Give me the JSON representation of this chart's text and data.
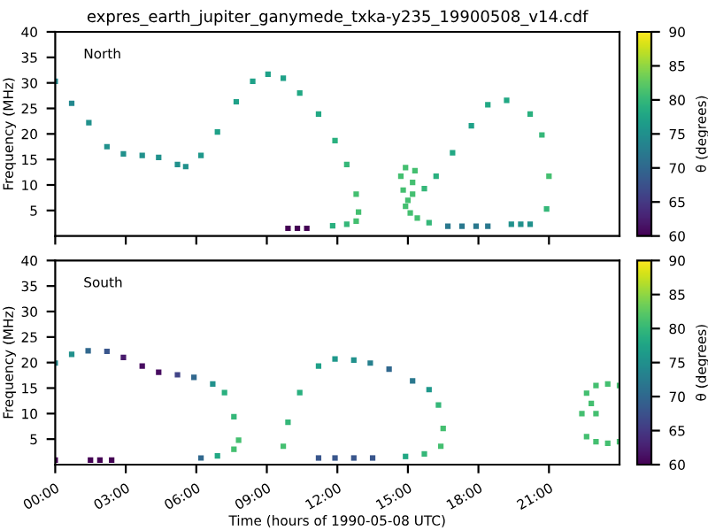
{
  "chart_data": [
    {
      "type": "scatter",
      "title": "expres_earth_jupiter_ganymede_txka-y235_19900508_v14.cdf",
      "ylabel": "Frequency (MHz)",
      "clabel": "θ (degrees)",
      "annotations": [
        "North"
      ],
      "xlim": [
        0,
        24
      ],
      "xticks": [
        {
          "value": 0,
          "label": null
        },
        {
          "value": 3,
          "label": null
        },
        {
          "value": 6,
          "label": null
        },
        {
          "value": 9,
          "label": null
        },
        {
          "value": 12,
          "label": null
        },
        {
          "value": 15,
          "label": null
        },
        {
          "value": 18,
          "label": null
        },
        {
          "value": 21,
          "label": null
        }
      ],
      "ylim": [
        0,
        40
      ],
      "yticks": [
        5,
        10,
        15,
        20,
        25,
        30,
        35,
        40
      ],
      "clim": [
        60,
        90
      ],
      "cticks": [
        60,
        65,
        70,
        75,
        80,
        85,
        90
      ],
      "tick_labels": "y",
      "marker": "square",
      "grid": false,
      "legend": false,
      "series": [
        {
          "x": [
            0,
            0.7,
            1.43,
            2.2,
            2.9,
            3.7,
            4.4,
            5.2,
            5.55,
            6.2,
            6.9,
            7.7,
            8.4,
            9.05,
            9.7,
            10.4,
            11.2,
            11.9,
            12.4,
            12.8,
            12.9,
            12.8,
            12.4,
            11.8,
            9.9,
            10.3,
            10.7,
            16.7,
            17.3,
            17.9,
            18.4,
            19.4,
            19.8,
            20.2,
            20.9,
            21.0,
            20.7,
            20.2,
            19.2,
            18.4,
            17.7,
            16.9,
            16.2,
            15.7,
            15.2,
            14.7,
            14.9,
            15.3,
            15.2,
            14.9,
            15.4,
            15.9,
            15.0,
            14.8,
            15.1
          ],
          "values": [
            30.3,
            26.0,
            22.2,
            17.5,
            16.1,
            15.8,
            15.4,
            14.0,
            13.6,
            15.8,
            20.4,
            26.3,
            30.3,
            31.7,
            30.9,
            28.0,
            23.9,
            18.7,
            14.0,
            8.2,
            4.7,
            2.9,
            2.3,
            2.0,
            1.5,
            1.5,
            1.5,
            1.9,
            1.9,
            1.9,
            1.9,
            2.3,
            2.3,
            2.3,
            5.3,
            11.7,
            19.8,
            23.9,
            26.6,
            25.7,
            21.6,
            16.3,
            11.7,
            9.3,
            8.2,
            11.7,
            13.4,
            12.8,
            10.5,
            5.8,
            3.5,
            2.6,
            7.0,
            9.0,
            4.5
          ],
          "cvalues": [
            74,
            74,
            75,
            75,
            75,
            75,
            75,
            75,
            75,
            76,
            77,
            77,
            77,
            77,
            77,
            78,
            78,
            79,
            80,
            81,
            81,
            81,
            80,
            79,
            60,
            60,
            60,
            72,
            72,
            72,
            72,
            75,
            75,
            75,
            80,
            81,
            80,
            79,
            78,
            78,
            77,
            78,
            79,
            80,
            81,
            81,
            81,
            81,
            81,
            81,
            81,
            80,
            81,
            81,
            81
          ]
        }
      ]
    },
    {
      "type": "scatter",
      "xlabel": "Time (hours of 1990-05-08 UTC)",
      "ylabel": "Frequency (MHz)",
      "clabel": "θ (degrees)",
      "annotations": [
        "South"
      ],
      "xlim": [
        0,
        24
      ],
      "xticks": [
        {
          "value": 0,
          "label": "00:00"
        },
        {
          "value": 3,
          "label": "03:00"
        },
        {
          "value": 6,
          "label": "06:00"
        },
        {
          "value": 9,
          "label": "09:00"
        },
        {
          "value": 12,
          "label": "12:00"
        },
        {
          "value": 15,
          "label": "15:00"
        },
        {
          "value": 18,
          "label": "18:00"
        },
        {
          "value": 21,
          "label": "21:00"
        }
      ],
      "ylim": [
        0,
        40
      ],
      "yticks": [
        5,
        10,
        15,
        20,
        25,
        30,
        35,
        40
      ],
      "clim": [
        60,
        90
      ],
      "cticks": [
        60,
        65,
        70,
        75,
        80,
        85,
        90
      ],
      "marker": "square",
      "grid": false,
      "legend": false,
      "series": [
        {
          "x": [
            0,
            0.7,
            1.4,
            2.2,
            2.9,
            3.7,
            4.4,
            5.2,
            5.9,
            6.7,
            7.2,
            7.6,
            7.8,
            7.6,
            6.9,
            6.2,
            0,
            1.5,
            1.9,
            2.4,
            9.7,
            9.9,
            10.4,
            11.2,
            11.9,
            12.7,
            13.4,
            14.2,
            15.2,
            15.9,
            16.3,
            16.5,
            16.4,
            15.7,
            14.9,
            11.2,
            11.9,
            12.7,
            13.5,
            22.4,
            22.6,
            23.0,
            23.5,
            24.0,
            22.6,
            23.0,
            23.5,
            24.0,
            23.0,
            22.8
          ],
          "values": [
            19.9,
            21.6,
            22.3,
            22.2,
            21.0,
            19.3,
            18.1,
            17.6,
            17.1,
            15.8,
            14.1,
            9.4,
            4.8,
            3.0,
            1.7,
            1.3,
            0.9,
            0.9,
            0.9,
            0.9,
            3.6,
            8.3,
            14.1,
            19.3,
            20.7,
            20.5,
            19.9,
            18.7,
            16.4,
            14.7,
            11.7,
            7.1,
            3.6,
            2.1,
            1.6,
            1.3,
            1.3,
            1.3,
            1.3,
            10.0,
            14.0,
            15.5,
            15.8,
            15.5,
            5.5,
            4.5,
            4.2,
            4.5,
            10.0,
            12.0
          ],
          "cvalues": [
            74,
            75,
            70,
            68,
            62,
            61,
            61,
            66,
            70,
            75,
            79,
            80,
            81,
            81,
            78,
            70,
            60,
            60,
            60,
            60,
            81,
            80,
            79,
            77,
            76,
            75,
            73,
            70,
            72,
            76,
            80,
            81,
            81,
            80,
            78,
            68,
            68,
            68,
            68,
            81,
            81,
            81,
            81,
            81,
            81,
            81,
            81,
            81,
            81,
            81
          ]
        }
      ]
    }
  ]
}
